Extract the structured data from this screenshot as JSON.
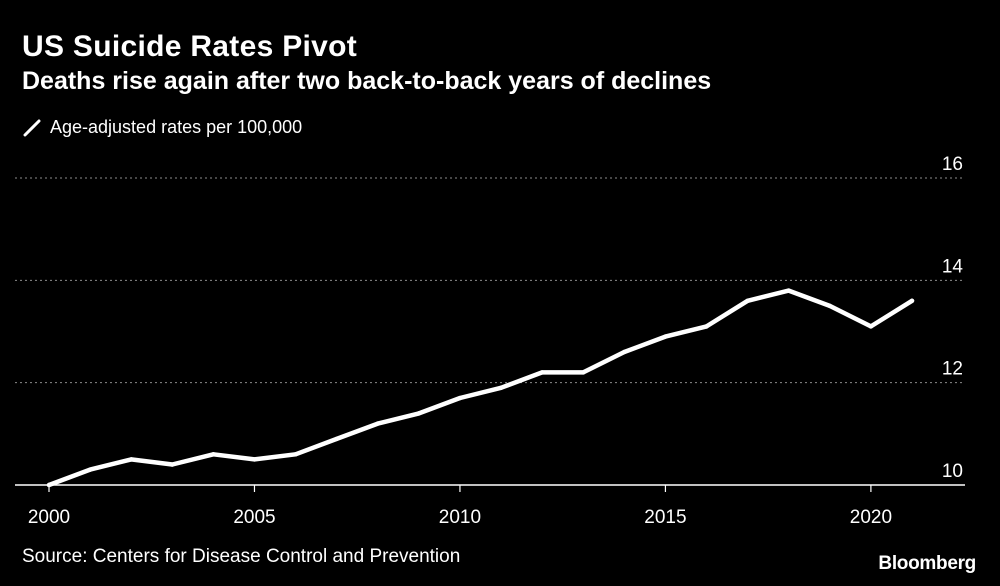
{
  "title": "US Suicide Rates Pivot",
  "subtitle": "Deaths rise again after two back-to-back years of declines",
  "source": "Source: Centers for Disease Control and Prevention",
  "brand": "Bloomberg",
  "colors": {
    "background": "#000000",
    "line": "#ffffff",
    "grid": "#8c8c8c",
    "text": "#ffffff"
  },
  "chart_data": {
    "type": "line",
    "title": "US Suicide Rates Pivot",
    "subtitle": "Deaths rise again after two back-to-back years of declines",
    "xlabel": "",
    "ylabel": "",
    "x": [
      2000,
      2001,
      2002,
      2003,
      2004,
      2005,
      2006,
      2007,
      2008,
      2009,
      2010,
      2011,
      2012,
      2013,
      2014,
      2015,
      2016,
      2017,
      2018,
      2019,
      2020,
      2021
    ],
    "series": [
      {
        "name": "Age-adjusted rates per 100,000",
        "values": [
          10.0,
          10.3,
          10.5,
          10.4,
          10.6,
          10.5,
          10.6,
          10.9,
          11.2,
          11.4,
          11.7,
          11.9,
          12.2,
          12.2,
          12.6,
          12.9,
          13.1,
          13.6,
          13.8,
          13.5,
          13.1,
          13.6
        ]
      }
    ],
    "xlim": [
      2000,
      2021
    ],
    "ylim": [
      10,
      16
    ],
    "yticks": [
      "10",
      "12",
      "14",
      "16"
    ],
    "xticks": [
      "2000",
      "2005",
      "2010",
      "2015",
      "2020"
    ],
    "grid": true,
    "legend_position": "top-left"
  }
}
